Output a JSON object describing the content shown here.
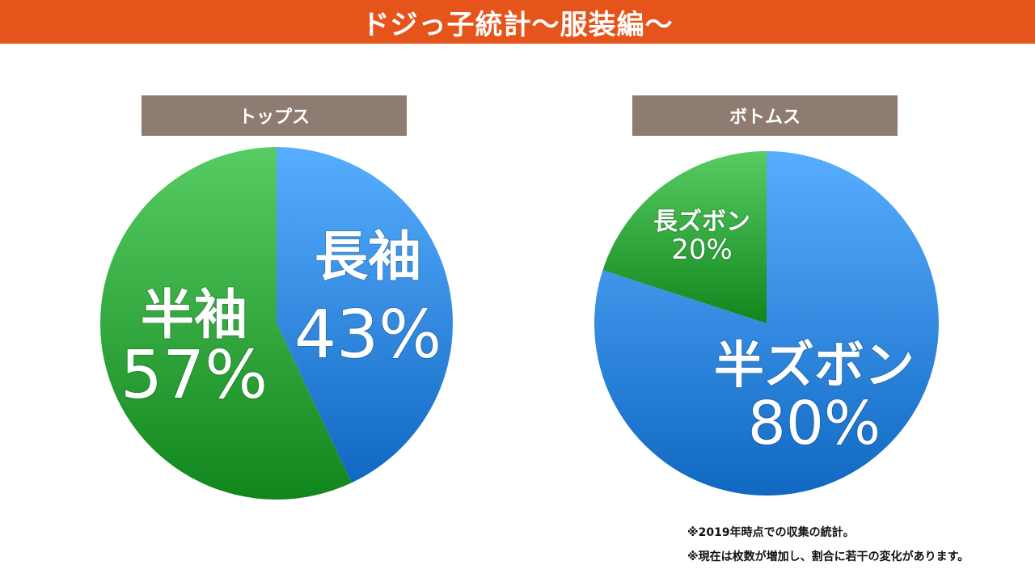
{
  "header": {
    "title": "ドジっ子統計〜服装編〜",
    "color": "#e5541a"
  },
  "colors": {
    "blue": "#2f86e0",
    "green": "#2ea43a",
    "label_bg": "#8e7b72"
  },
  "notes": [
    "※2019年時点での収集の統計。",
    "※現在は枚数が増加し、割合に若干の変化があります。"
  ],
  "chart_data": [
    {
      "type": "pie",
      "title": "トップス",
      "slices": [
        {
          "name": "長袖",
          "value": 43,
          "label": "43%",
          "color": "#2f86e0"
        },
        {
          "name": "半袖",
          "value": 57,
          "label": "57%",
          "color": "#2ea43a"
        }
      ]
    },
    {
      "type": "pie",
      "title": "ボトムス",
      "slices": [
        {
          "name": "半ズボン",
          "value": 80,
          "label": "80%",
          "color": "#2f86e0"
        },
        {
          "name": "長ズボン",
          "value": 20,
          "label": "20%",
          "color": "#2ea43a"
        }
      ]
    }
  ]
}
